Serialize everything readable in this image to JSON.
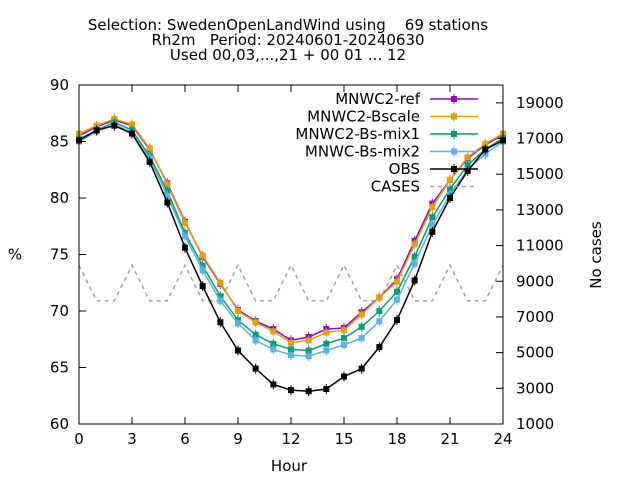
{
  "chart_data": {
    "type": "line",
    "title_lines": [
      "Selection: SwedenOpenLandWind using    69 stations",
      "Rh2m   Period: 20240601-20240630",
      "Used 00,03,...,21 + 00 01 ... 12"
    ],
    "xlabel": "Hour",
    "ylabel": "%",
    "y2label": "No cases",
    "xlim": [
      0,
      24
    ],
    "ylim": [
      60,
      90
    ],
    "y2lim": [
      1000,
      20000
    ],
    "xticks": [
      0,
      3,
      6,
      9,
      12,
      15,
      18,
      21,
      24
    ],
    "yticks": [
      60,
      65,
      70,
      75,
      80,
      85,
      90
    ],
    "y2ticks": [
      1000,
      3000,
      5000,
      7000,
      9000,
      11000,
      13000,
      15000,
      17000,
      19000
    ],
    "x": [
      0,
      1,
      2,
      3,
      4,
      5,
      6,
      7,
      8,
      9,
      10,
      11,
      12,
      13,
      14,
      15,
      16,
      17,
      18,
      19,
      20,
      21,
      22,
      23,
      24
    ],
    "series": [
      {
        "name": "MNWC2-ref",
        "color": "#9400d3",
        "dashed": false,
        "axis": "y",
        "values": [
          85.5,
          86.3,
          86.9,
          86.4,
          84.3,
          81.3,
          77.9,
          74.8,
          72.4,
          70.1,
          69.1,
          68.4,
          67.4,
          67.7,
          68.4,
          68.5,
          69.9,
          71.2,
          72.8,
          76.2,
          79.5,
          81.6,
          83.5,
          84.7,
          85.6
        ]
      },
      {
        "name": "MNWC2-Bscale",
        "color": "#e69f00",
        "dashed": false,
        "axis": "y",
        "values": [
          85.7,
          86.4,
          87.0,
          86.5,
          84.4,
          81.2,
          77.8,
          74.9,
          72.5,
          70.0,
          69.0,
          68.2,
          67.2,
          67.4,
          68.1,
          68.3,
          69.7,
          71.2,
          72.6,
          75.9,
          79.2,
          81.6,
          83.6,
          84.8,
          85.7
        ]
      },
      {
        "name": "MNWC2-Bs-mix1",
        "color": "#009e73",
        "dashed": false,
        "axis": "y",
        "values": [
          85.2,
          86.0,
          86.7,
          86.0,
          83.7,
          80.6,
          76.9,
          74.0,
          71.3,
          69.2,
          67.9,
          67.1,
          66.6,
          66.5,
          67.1,
          67.6,
          68.6,
          70.0,
          71.7,
          74.8,
          78.3,
          80.8,
          82.9,
          84.3,
          85.3
        ]
      },
      {
        "name": "MNWC-Bs-mix2",
        "color": "#56b4e9",
        "dashed": false,
        "axis": "y",
        "values": [
          85.0,
          85.9,
          86.5,
          85.8,
          83.5,
          80.2,
          76.6,
          73.6,
          70.9,
          68.9,
          67.4,
          66.6,
          66.1,
          66.0,
          66.5,
          67.0,
          67.6,
          69.1,
          71.0,
          74.2,
          77.6,
          80.3,
          82.5,
          83.9,
          85.0
        ]
      },
      {
        "name": "OBS",
        "color": "#000000",
        "dashed": false,
        "axis": "y",
        "values": [
          85.1,
          86.0,
          86.4,
          85.7,
          83.2,
          79.6,
          75.6,
          72.2,
          69.0,
          66.5,
          64.9,
          63.5,
          63.0,
          62.9,
          63.1,
          64.2,
          64.9,
          66.8,
          69.2,
          72.7,
          77.0,
          80.0,
          82.4,
          84.3,
          85.1
        ]
      },
      {
        "name": "CASES",
        "color": "#a0a0a0",
        "dashed": true,
        "axis": "y2",
        "values": [
          9900,
          7900,
          7900,
          9900,
          7900,
          7900,
          9900,
          7900,
          7900,
          9900,
          7900,
          7900,
          9900,
          7900,
          7900,
          9900,
          7900,
          7900,
          9900,
          7900,
          7900,
          9900,
          7900,
          7900,
          9900
        ]
      }
    ],
    "legend_position": "top-right"
  }
}
